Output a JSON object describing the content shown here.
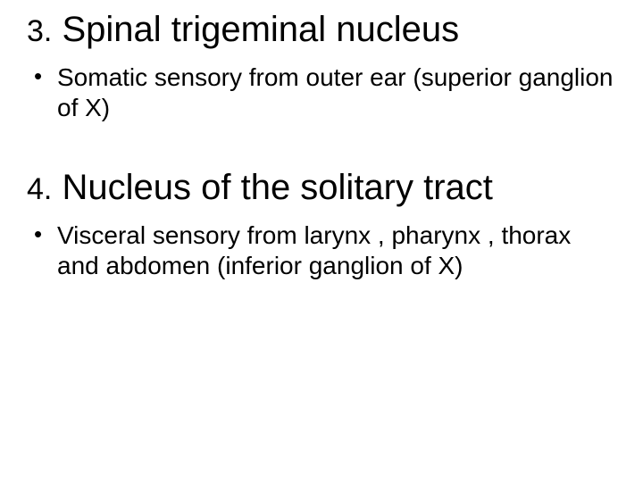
{
  "slide": {
    "sections": [
      {
        "number": "3.",
        "title": "Spinal trigeminal nucleus",
        "bullets": [
          "Somatic sensory from  outer ear (superior ganglion of X)"
        ]
      },
      {
        "number": "4.",
        "title": "Nucleus of the solitary tract",
        "bullets": [
          "Visceral sensory  from  larynx , pharynx , thorax and abdomen (inferior ganglion of X)"
        ]
      }
    ],
    "colors": {
      "background": "#ffffff",
      "text": "#000000"
    },
    "typography": {
      "heading_fontsize_pt": 40,
      "number_fontsize_pt": 34,
      "body_fontsize_pt": 28,
      "font_family": "Arial"
    }
  }
}
